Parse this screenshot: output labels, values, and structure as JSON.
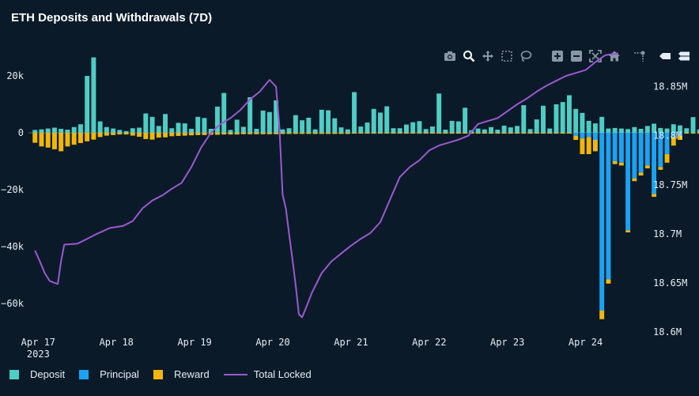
{
  "title": "ETH Deposits and Withdrawals (7D)",
  "colors": {
    "background": "#0b1a29",
    "deposit": "#4ecdc4",
    "principal": "#1aa3f2",
    "reward": "#f2b705",
    "total_locked": "#9b59d0",
    "axis_text": "#e6edf3",
    "zero_line": "#55626e"
  },
  "modebar": {
    "icons": [
      "camera-icon",
      "zoom-icon",
      "pan-icon",
      "box-select-icon",
      "lasso-icon",
      "zoom-in-icon",
      "zoom-out-icon",
      "autoscale-icon",
      "home-icon",
      "spike-lines-icon",
      "hover-closest-icon",
      "hover-compare-icon"
    ]
  },
  "legend": {
    "items": [
      {
        "label": "Deposit",
        "kind": "box",
        "color": "#4ecdc4"
      },
      {
        "label": "Principal",
        "kind": "box",
        "color": "#1aa3f2"
      },
      {
        "label": "Reward",
        "kind": "box",
        "color": "#f2b705"
      },
      {
        "label": "Total Locked",
        "kind": "line",
        "color": "#9b59d0"
      }
    ]
  },
  "chart_data": {
    "type": "bar",
    "title": "ETH Deposits and Withdrawals (7D)",
    "x_range": [
      "2023-04-16T21:00",
      "2023-04-24T12:00"
    ],
    "x_ticks": [
      {
        "date": "2023-04-17",
        "label": "Apr 17",
        "sublabel": "2023"
      },
      {
        "date": "2023-04-18",
        "label": "Apr 18"
      },
      {
        "date": "2023-04-19",
        "label": "Apr 19"
      },
      {
        "date": "2023-04-20",
        "label": "Apr 20"
      },
      {
        "date": "2023-04-21",
        "label": "Apr 21"
      },
      {
        "date": "2023-04-22",
        "label": "Apr 22"
      },
      {
        "date": "2023-04-23",
        "label": "Apr 23"
      },
      {
        "date": "2023-04-24",
        "label": "Apr 24"
      }
    ],
    "y_left": {
      "range": [
        -70000,
        30000
      ],
      "ticks": [
        20000,
        0,
        -20000,
        -40000,
        -60000
      ],
      "tick_labels": [
        "20k",
        "0",
        "−20k",
        "−40k",
        "−60k"
      ]
    },
    "y_right": {
      "range": [
        18600000,
        18890000
      ],
      "ticks": [
        18850000,
        18800000,
        18750000,
        18700000,
        18650000,
        18600000
      ],
      "tick_labels": [
        "18.85M",
        "18.8M",
        "18.75M",
        "18.7M",
        "18.65M",
        "18.6M"
      ]
    },
    "bar_interval_hours": 2,
    "bar_start": "2023-04-16T23:00",
    "series": [
      {
        "name": "Deposit",
        "color": "#4ecdc4",
        "values": [
          1000,
          1200,
          1500,
          1800,
          1400,
          1100,
          2000,
          3000,
          20000,
          26500,
          4000,
          2000,
          1500,
          1000,
          600,
          1600,
          1800,
          6800,
          5600,
          2400,
          6600,
          1600,
          3500,
          3300,
          1400,
          5600,
          5200,
          1400,
          9200,
          14000,
          1000,
          4600,
          2100,
          12500,
          1400,
          7800,
          7300,
          11400,
          1200,
          1600,
          6200,
          4400,
          5300,
          1200,
          8100,
          7900,
          5100,
          1900,
          1200,
          14300,
          2200,
          3600,
          8400,
          7100,
          9300,
          1600,
          1600,
          2900,
          3700,
          4100,
          1300,
          2200,
          13800,
          1100,
          4200,
          4000,
          8800,
          900,
          1500,
          1200,
          2000,
          1100,
          2500,
          1900,
          2400,
          9700,
          1300,
          4700,
          9500,
          1500,
          10000,
          10800,
          13200,
          8400,
          7000,
          4200,
          3300,
          5600,
          1500,
          1700,
          1500,
          1300,
          2000,
          1400,
          2400,
          3200,
          1700,
          1500,
          3000,
          2600,
          1600,
          5500,
          1200,
          3000,
          2200,
          1200,
          2700,
          1100,
          1500,
          1600,
          1500,
          2600,
          2800,
          1200,
          10300,
          1400,
          1300,
          1000,
          1800,
          1300,
          2200,
          1200,
          12000,
          1600,
          2000,
          2300,
          1600,
          11600,
          1900,
          1400,
          1600,
          1900,
          1000,
          1000,
          1600,
          2700,
          1100,
          1100,
          1600,
          12000,
          1500,
          1400,
          1600,
          1600,
          6800,
          1800,
          10400,
          1500,
          1100,
          4600,
          1800,
          1400,
          1000,
          1500,
          1300,
          1800,
          900,
          4700,
          1100,
          800,
          1000,
          1300,
          2000,
          8800,
          1200,
          1200,
          4800,
          3600,
          1000,
          1500,
          1200,
          1300,
          1100,
          2300,
          1600,
          1200,
          8600,
          1200,
          4300,
          3000,
          1000,
          2100
        ]
      },
      {
        "name": "Principal",
        "color": "#1aa3f2",
        "values": [
          0,
          0,
          0,
          0,
          0,
          0,
          0,
          0,
          0,
          0,
          0,
          0,
          0,
          0,
          0,
          0,
          0,
          0,
          0,
          0,
          0,
          0,
          0,
          0,
          0,
          0,
          0,
          0,
          0,
          0,
          0,
          0,
          0,
          0,
          0,
          0,
          0,
          0,
          0,
          0,
          0,
          0,
          0,
          0,
          0,
          0,
          0,
          0,
          0,
          0,
          0,
          0,
          0,
          0,
          0,
          0,
          0,
          0,
          0,
          0,
          0,
          0,
          0,
          0,
          0,
          0,
          0,
          0,
          0,
          0,
          0,
          0,
          0,
          0,
          0,
          0,
          0,
          0,
          0,
          0,
          0,
          0,
          0,
          -1000,
          -2000,
          -1500,
          -2500,
          -62500,
          -51500,
          -10000,
          -10500,
          -34300,
          -16000,
          -14000,
          -11500,
          -21500,
          -12000,
          -7500,
          -1500,
          -1000,
          0,
          0,
          0,
          0,
          0,
          0,
          0,
          0,
          0,
          0,
          0,
          0,
          0,
          0,
          0,
          0,
          0,
          0,
          0,
          0,
          0,
          0,
          0,
          0,
          0,
          0,
          0,
          0,
          0,
          0,
          0,
          0,
          0,
          0,
          0,
          0,
          0,
          0,
          0,
          0,
          0,
          0,
          0,
          0,
          0,
          0,
          0,
          0,
          0,
          0,
          0,
          0,
          0,
          0,
          0,
          0,
          0,
          0,
          0,
          0,
          0,
          0,
          0,
          0,
          0,
          0,
          0,
          0,
          0,
          0,
          0,
          0,
          0,
          0,
          0,
          0,
          0,
          0,
          0,
          0,
          0,
          0,
          0,
          0,
          0,
          0,
          0,
          0,
          0,
          -3500
        ]
      },
      {
        "name": "Reward",
        "color": "#f2b705",
        "values": [
          -3500,
          -4800,
          -5200,
          -5800,
          -6500,
          -4800,
          -4200,
          -3600,
          -3000,
          -2400,
          -1500,
          -1000,
          -800,
          -600,
          -600,
          -1000,
          -1400,
          -2200,
          -2400,
          -1700,
          -1600,
          -1200,
          -1100,
          -1000,
          -900,
          -800,
          -800,
          -700,
          -700,
          -600,
          -600,
          -600,
          -500,
          -500,
          -500,
          -500,
          -500,
          -500,
          -400,
          -400,
          -400,
          -400,
          -400,
          -400,
          -400,
          -400,
          -400,
          -400,
          -400,
          -300,
          -300,
          -300,
          -300,
          -300,
          -300,
          -300,
          -300,
          -300,
          -300,
          -300,
          -300,
          -300,
          -300,
          -300,
          -300,
          -300,
          -300,
          -300,
          -300,
          -300,
          -300,
          -300,
          -300,
          -300,
          -300,
          -300,
          -300,
          -300,
          -300,
          -300,
          -300,
          -300,
          -300,
          -1500,
          -5500,
          -6000,
          -4000,
          -3000,
          -1500,
          -1000,
          -1000,
          -700,
          -1000,
          -1000,
          -1000,
          -1000,
          -1000,
          -3000,
          -3000,
          -1500,
          -300,
          -300,
          -300,
          -300,
          -300,
          -300,
          -300,
          -300,
          -300,
          -300,
          -300,
          -300,
          -300,
          -300,
          -300,
          -300,
          -300,
          -300,
          -300,
          -300,
          -300,
          -300,
          -300,
          -300,
          -300,
          -300,
          -300,
          -300,
          -300,
          -300,
          -300,
          -300,
          -300,
          -300,
          -300,
          -300,
          -300,
          -300,
          -300,
          -300,
          -300,
          -300,
          -300,
          -300,
          -300,
          -300,
          -300,
          -300,
          -300,
          -300,
          -300,
          -300,
          -300,
          -300,
          -300,
          -300,
          -300,
          -300,
          -300,
          -300,
          -300,
          -300,
          -300,
          -300,
          -300,
          -300,
          -300,
          -300,
          -300,
          -300,
          -300,
          -300,
          -300,
          -300,
          -300,
          -300,
          -300,
          -300,
          -300,
          -300,
          -300,
          -300,
          -300,
          -500,
          -800,
          -1200
        ]
      },
      {
        "name": "Total Locked",
        "color": "#9b59d0",
        "axis": "right",
        "points": [
          [
            "2023-04-16T23:00",
            18683000
          ],
          [
            "2023-04-17T00:30",
            18672000
          ],
          [
            "2023-04-17T02:00",
            18660000
          ],
          [
            "2023-04-17T03:30",
            18652000
          ],
          [
            "2023-04-17T05:00",
            18650000
          ],
          [
            "2023-04-17T06:00",
            18649000
          ],
          [
            "2023-04-17T07:00",
            18672000
          ],
          [
            "2023-04-17T08:00",
            18689000
          ],
          [
            "2023-04-17T12:00",
            18690000
          ],
          [
            "2023-04-17T15:00",
            18695000
          ],
          [
            "2023-04-17T18:00",
            18700000
          ],
          [
            "2023-04-17T22:00",
            18706000
          ],
          [
            "2023-04-18T02:00",
            18708000
          ],
          [
            "2023-04-18T05:00",
            18713000
          ],
          [
            "2023-04-18T08:00",
            18726000
          ],
          [
            "2023-04-18T11:00",
            18734000
          ],
          [
            "2023-04-18T14:00",
            18739000
          ],
          [
            "2023-04-18T17:00",
            18746000
          ],
          [
            "2023-04-18T20:00",
            18752000
          ],
          [
            "2023-04-18T23:00",
            18768000
          ],
          [
            "2023-04-19T02:00",
            18788000
          ],
          [
            "2023-04-19T05:00",
            18803000
          ],
          [
            "2023-04-19T08:00",
            18812000
          ],
          [
            "2023-04-19T11:00",
            18818000
          ],
          [
            "2023-04-19T14:00",
            18826000
          ],
          [
            "2023-04-19T17:00",
            18837000
          ],
          [
            "2023-04-19T20:00",
            18845000
          ],
          [
            "2023-04-19T23:00",
            18857000
          ],
          [
            "2023-04-20T01:00",
            18850000
          ],
          [
            "2023-04-20T02:00",
            18810000
          ],
          [
            "2023-04-20T03:00",
            18740000
          ],
          [
            "2023-04-20T04:00",
            18726000
          ],
          [
            "2023-04-20T05:00",
            18700000
          ],
          [
            "2023-04-20T06:00",
            18675000
          ],
          [
            "2023-04-20T07:00",
            18648000
          ],
          [
            "2023-04-20T08:00",
            18618000
          ],
          [
            "2023-04-20T09:00",
            18615000
          ],
          [
            "2023-04-20T10:00",
            18623000
          ],
          [
            "2023-04-20T12:00",
            18640000
          ],
          [
            "2023-04-20T15:00",
            18660000
          ],
          [
            "2023-04-20T18:00",
            18672000
          ],
          [
            "2023-04-20T21:00",
            18680000
          ],
          [
            "2023-04-21T00:00",
            18688000
          ],
          [
            "2023-04-21T03:00",
            18695000
          ],
          [
            "2023-04-21T06:00",
            18701000
          ],
          [
            "2023-04-21T09:00",
            18712000
          ],
          [
            "2023-04-21T12:00",
            18735000
          ],
          [
            "2023-04-21T15:00",
            18758000
          ],
          [
            "2023-04-21T18:00",
            18768000
          ],
          [
            "2023-04-21T21:00",
            18775000
          ],
          [
            "2023-04-22T00:00",
            18785000
          ],
          [
            "2023-04-22T03:00",
            18790000
          ],
          [
            "2023-04-22T06:00",
            18793000
          ],
          [
            "2023-04-22T09:00",
            18796000
          ],
          [
            "2023-04-22T12:00",
            18800000
          ],
          [
            "2023-04-22T15:00",
            18812000
          ],
          [
            "2023-04-22T18:00",
            18815000
          ],
          [
            "2023-04-22T21:00",
            18818000
          ],
          [
            "2023-04-23T00:00",
            18825000
          ],
          [
            "2023-04-23T03:00",
            18832000
          ],
          [
            "2023-04-23T06:00",
            18838000
          ],
          [
            "2023-04-23T09:00",
            18845000
          ],
          [
            "2023-04-23T12:00",
            18851000
          ],
          [
            "2023-04-23T15:00",
            18856000
          ],
          [
            "2023-04-23T18:00",
            18861000
          ],
          [
            "2023-04-23T21:00",
            18864000
          ],
          [
            "2023-04-24T00:00",
            18867000
          ],
          [
            "2023-04-24T03:00",
            18875000
          ],
          [
            "2023-04-24T06:00",
            18882000
          ],
          [
            "2023-04-24T10:00",
            18884000
          ]
        ]
      }
    ]
  }
}
